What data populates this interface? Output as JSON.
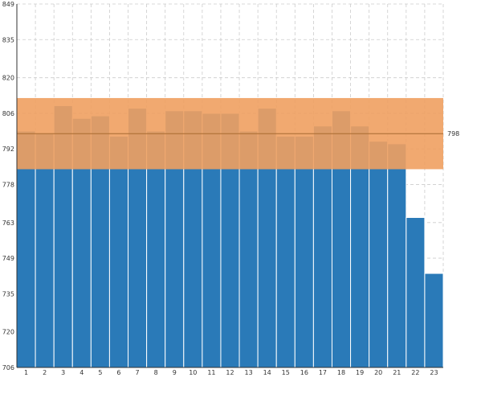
{
  "chart_data": {
    "type": "bar",
    "title": "",
    "xlabel": "",
    "ylabel": "",
    "ylim": [
      706,
      849
    ],
    "yticks": [
      706,
      720,
      735,
      749,
      763,
      778,
      792,
      806,
      820,
      835,
      849
    ],
    "grid": true,
    "categories": [
      "1",
      "2",
      "3",
      "4",
      "5",
      "6",
      "7",
      "8",
      "9",
      "10",
      "11",
      "12",
      "13",
      "14",
      "15",
      "16",
      "17",
      "18",
      "19",
      "20",
      "21",
      "22",
      "23"
    ],
    "series": [
      {
        "values": [
          799,
          798,
          809,
          804,
          805,
          797,
          808,
          799,
          807,
          807,
          806,
          806,
          799,
          808,
          797,
          797,
          801,
          807,
          801,
          795,
          794,
          765,
          743
        ],
        "color": "#2a7ab8"
      }
    ],
    "reference_line": {
      "value": 798,
      "label": "798",
      "color": "#a86a30"
    },
    "highlight_band": {
      "from": 784,
      "to": 812,
      "color": "#f0a060",
      "opacity": 0.9
    },
    "colors": {
      "bar": "#2a7ab8",
      "band": "#f0a060",
      "grid": "#cccccc",
      "axis": "#333333"
    }
  }
}
